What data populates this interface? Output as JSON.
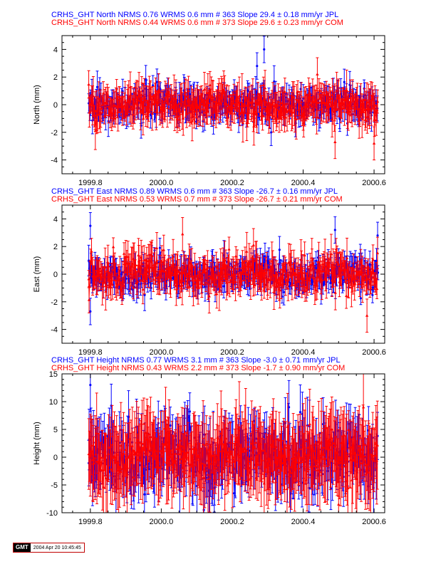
{
  "chart_data": [
    {
      "type": "scatter",
      "ylabel": "North (mm)",
      "xlim": [
        1999.72,
        2000.63
      ],
      "ylim": [
        -5,
        5
      ],
      "xticks": [
        "1999.8",
        "2000.0",
        "2000.2",
        "2000.4",
        "2000.6"
      ],
      "yticks": [
        "-4",
        "-2",
        "0",
        "2",
        "4"
      ],
      "legend": [
        {
          "text": "CRHS_GHT North NRMS 0.76 WRMS  0.6 mm # 363 Slope   29.4 ±  0.18 mm/yr JPL",
          "color": "#0000ff"
        },
        {
          "text": "CRHS_GHT North NRMS 0.44 WRMS  0.6 mm # 373 Slope   29.6 ±  0.23 mm/yr COM",
          "color": "#ff0000"
        }
      ],
      "series": [
        {
          "name": "JPL",
          "color": "#0000ff",
          "n": 363,
          "wrms": 0.6,
          "errbar": 0.8,
          "spikes": [
            [
              2000.29,
              4.0
            ],
            [
              2000.27,
              2.8
            ],
            [
              2000.31,
              -2.0
            ]
          ]
        },
        {
          "name": "COM",
          "color": "#ff0000",
          "n": 373,
          "wrms": 0.6,
          "errbar": 1.0,
          "spikes": [
            [
              2000.49,
              -2.7
            ],
            [
              2000.6,
              -2.8
            ],
            [
              2000.44,
              2.2
            ]
          ]
        }
      ]
    },
    {
      "type": "scatter",
      "ylabel": "East (mm)",
      "xlim": [
        1999.72,
        2000.63
      ],
      "ylim": [
        -5,
        5
      ],
      "xticks": [
        "1999.8",
        "2000.0",
        "2000.2",
        "2000.4",
        "2000.6"
      ],
      "yticks": [
        "-4",
        "-2",
        "0",
        "2",
        "4"
      ],
      "legend": [
        {
          "text": "CRHS_GHT East NRMS 0.89 WRMS  0.6 mm # 363 Slope  -26.7 ±  0.16 mm/yr JPL",
          "color": "#0000ff"
        },
        {
          "text": "CRHS_GHT East NRMS 0.53 WRMS  0.7 mm # 373 Slope  -26.7 ±  0.21 mm/yr COM",
          "color": "#ff0000"
        }
      ],
      "series": [
        {
          "name": "JPL",
          "color": "#0000ff",
          "n": 363,
          "wrms": 0.6,
          "errbar": 0.8,
          "spikes": [
            [
              1999.8,
              3.5
            ],
            [
              2000.49,
              3.2
            ],
            [
              2000.61,
              2.8
            ],
            [
              1999.8,
              -2.7
            ]
          ]
        },
        {
          "name": "COM",
          "color": "#ff0000",
          "n": 373,
          "wrms": 0.7,
          "errbar": 1.0,
          "spikes": [
            [
              2000.06,
              2.9
            ],
            [
              2000.58,
              -3.0
            ],
            [
              2000.26,
              2.1
            ]
          ]
        }
      ]
    },
    {
      "type": "scatter",
      "ylabel": "Height (mm)",
      "xlim": [
        1999.72,
        2000.63
      ],
      "ylim": [
        -10,
        15
      ],
      "xticks": [
        "1999.8",
        "2000.0",
        "2000.2",
        "2000.4",
        "2000.6"
      ],
      "yticks": [
        "-10",
        "-5",
        "0",
        "5",
        "10",
        "15"
      ],
      "legend": [
        {
          "text": "CRHS_GHT Height NRMS 0.77 WRMS  3.1 mm # 363 Slope   -3.0 ±  0.71 mm/yr JPL",
          "color": "#0000ff"
        },
        {
          "text": "CRHS_GHT Height NRMS 0.43 WRMS  2.2 mm # 373 Slope   -1.7 ±  0.90 mm/yr COM",
          "color": "#ff0000"
        }
      ],
      "series": [
        {
          "name": "JPL",
          "color": "#0000ff",
          "n": 363,
          "wrms": 3.1,
          "errbar": 4.0,
          "spikes": [
            [
              1999.8,
              13.0
            ],
            [
              2000.12,
              -9.5
            ],
            [
              2000.36,
              9.0
            ]
          ]
        },
        {
          "name": "COM",
          "color": "#ff0000",
          "n": 373,
          "wrms": 2.2,
          "errbar": 5.5,
          "spikes": [
            [
              2000.57,
              9.0
            ],
            [
              2000.5,
              -8.5
            ],
            [
              2000.22,
              7.0
            ]
          ]
        }
      ]
    }
  ],
  "footer": {
    "logo": "GMT",
    "timestamp": "2004 Apr 20 10:45:45"
  }
}
